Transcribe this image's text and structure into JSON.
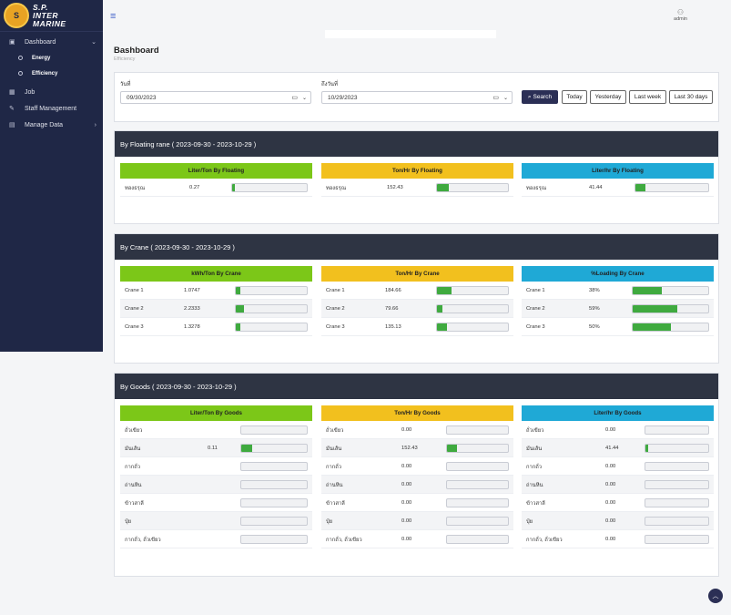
{
  "brand": {
    "logo_mark": "S",
    "line1": "S.P.",
    "line2": "INTER",
    "line3": "MARINE"
  },
  "sidebar": {
    "dashboard": "Dashboard",
    "energy": "Energy",
    "efficiency": "Efficiency",
    "job": "Job",
    "staff": "Staff Management",
    "manage": "Manage Data"
  },
  "header": {
    "user": "admin",
    "hamburger_icon": "≡",
    "user_icon": "⚇"
  },
  "page": {
    "title": "Bashboard",
    "breadcrumb": "Efficiency"
  },
  "filters": {
    "start_label": "วันที่",
    "start_value": "09/30/2023",
    "end_label": "ถึงวันที่",
    "end_value": "10/29/2023",
    "search": "Search",
    "today": "Today",
    "yesterday": "Yesterday",
    "last_week": "Last week",
    "last_30": "Last 30 days"
  },
  "floating": {
    "title": "By Floating rane ( 2023-09-30 - 2023-10-29 )",
    "p1": {
      "title": "Liter/Ton By Floating",
      "rows": [
        {
          "label": "ทองธรุณ",
          "value": "0.27",
          "fill": 0.04
        }
      ]
    },
    "p2": {
      "title": "Ton/Hr By Floating",
      "rows": [
        {
          "label": "ทองธรุณ",
          "value": "152.43",
          "fill": 0.17
        }
      ]
    },
    "p3": {
      "title": "Liter/hr By Floating",
      "rows": [
        {
          "label": "ทองธรุณ",
          "value": "41.44",
          "fill": 0.14
        }
      ]
    }
  },
  "crane": {
    "title": "By Crane ( 2023-09-30 - 2023-10-29 )",
    "p1": {
      "title": "kWh/Ton By Crane",
      "rows": [
        {
          "label": "Crane 1",
          "value": "1.0747",
          "fill": 0.06
        },
        {
          "label": "Crane 2",
          "value": "2.2333",
          "fill": 0.11
        },
        {
          "label": "Crane 3",
          "value": "1.3278",
          "fill": 0.07
        }
      ]
    },
    "p2": {
      "title": "Ton/Hr By Crane",
      "rows": [
        {
          "label": "Crane 1",
          "value": "184.66",
          "fill": 0.2
        },
        {
          "label": "Crane 2",
          "value": "79.66",
          "fill": 0.08
        },
        {
          "label": "Crane 3",
          "value": "135.13",
          "fill": 0.14
        }
      ]
    },
    "p3": {
      "title": "%Loading By Crane",
      "rows": [
        {
          "label": "Crane 1",
          "value": "38%",
          "fill": 0.38
        },
        {
          "label": "Crane 2",
          "value": "59%",
          "fill": 0.59
        },
        {
          "label": "Crane 3",
          "value": "50%",
          "fill": 0.5
        }
      ]
    }
  },
  "goods": {
    "title": "By Goods ( 2023-09-30 - 2023-10-29 )",
    "p1": {
      "title": "Liter/Ton By Goods",
      "rows": [
        {
          "label": "ถั่วเขียว",
          "value": "",
          "fill": 0
        },
        {
          "label": "มันเส้น",
          "value": "0.11",
          "fill": 0.16
        },
        {
          "label": "กากถั่ว",
          "value": "",
          "fill": 0
        },
        {
          "label": "ถ่านหิน",
          "value": "",
          "fill": 0
        },
        {
          "label": "ข้าวสาลี",
          "value": "",
          "fill": 0
        },
        {
          "label": "ปุ๋ย",
          "value": "",
          "fill": 0
        },
        {
          "label": "กากถั่ว, ถั่วเขียว",
          "value": "",
          "fill": 0
        }
      ]
    },
    "p2": {
      "title": "Ton/Hr By Goods",
      "rows": [
        {
          "label": "ถั่วเขียว",
          "value": "0.00",
          "fill": 0
        },
        {
          "label": "มันเส้น",
          "value": "152.43",
          "fill": 0.16
        },
        {
          "label": "กากถั่ว",
          "value": "0.00",
          "fill": 0
        },
        {
          "label": "ถ่านหิน",
          "value": "0.00",
          "fill": 0
        },
        {
          "label": "ข้าวสาลี",
          "value": "0.00",
          "fill": 0
        },
        {
          "label": "ปุ๋ย",
          "value": "0.00",
          "fill": 0
        },
        {
          "label": "กากถั่ว, ถั่วเขียว",
          "value": "0.00",
          "fill": 0
        }
      ]
    },
    "p3": {
      "title": "Liter/hr By Goods",
      "rows": [
        {
          "label": "ถั่วเขียว",
          "value": "0.00",
          "fill": 0
        },
        {
          "label": "มันเส้น",
          "value": "41.44",
          "fill": 0.04
        },
        {
          "label": "กากถั่ว",
          "value": "0.00",
          "fill": 0
        },
        {
          "label": "ถ่านหิน",
          "value": "0.00",
          "fill": 0
        },
        {
          "label": "ข้าวสาลี",
          "value": "0.00",
          "fill": 0
        },
        {
          "label": "ปุ๋ย",
          "value": "0.00",
          "fill": 0
        },
        {
          "label": "กากถั่ว, ถั่วเขียว",
          "value": "0.00",
          "fill": 0
        }
      ]
    }
  }
}
